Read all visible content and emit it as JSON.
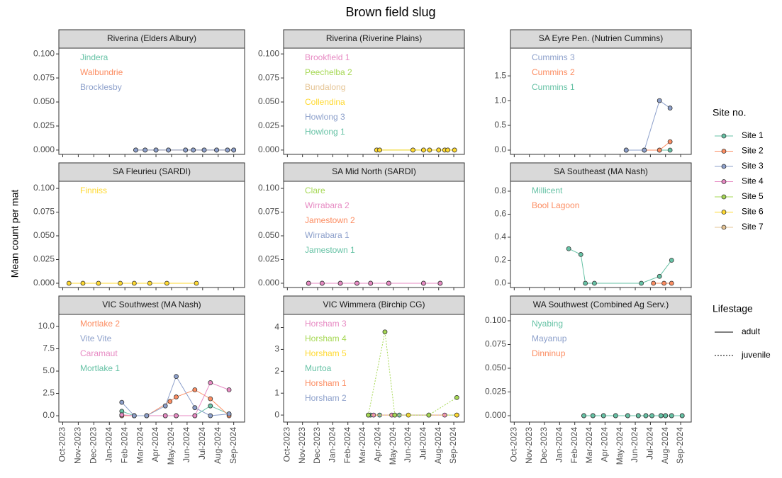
{
  "title": "Brown field slug",
  "y_label": "Mean count per mat",
  "x_axis": {
    "xlim": [
      -0.25,
      11.7
    ],
    "xticks": [
      {
        "value": 0,
        "label": "Oct-2023"
      },
      {
        "value": 1,
        "label": "Nov-2023"
      },
      {
        "value": 2,
        "label": "Dec-2023"
      },
      {
        "value": 3,
        "label": "Jan-2024"
      },
      {
        "value": 4,
        "label": "Feb-2024"
      },
      {
        "value": 5,
        "label": "Mar-2024"
      },
      {
        "value": 6,
        "label": "Apr-2024"
      },
      {
        "value": 7,
        "label": "May-2024"
      },
      {
        "value": 8,
        "label": "Jun-2024"
      },
      {
        "value": 9,
        "label": "Jul-2024"
      },
      {
        "value": 10,
        "label": "Aug-2024"
      },
      {
        "value": 11,
        "label": "Sep-2024"
      }
    ]
  },
  "legend": {
    "title": "Site no.",
    "items": [
      {
        "name": "Site 1",
        "color": "#66c2a5"
      },
      {
        "name": "Site 2",
        "color": "#fc8d62"
      },
      {
        "name": "Site 3",
        "color": "#8da0cb"
      },
      {
        "name": "Site 4",
        "color": "#e78ac3"
      },
      {
        "name": "Site 5",
        "color": "#a6d854"
      },
      {
        "name": "Site 6",
        "color": "#ffd92f"
      },
      {
        "name": "Site 7",
        "color": "#e5c494"
      }
    ],
    "lifestage": {
      "title": "Lifestage",
      "items": [
        {
          "name": "adult",
          "linetype": "solid"
        },
        {
          "name": "juvenile",
          "linetype": "dotted"
        }
      ]
    }
  },
  "chart_data": [
    {
      "type": "line",
      "title": "Riverina (Elders Albury)",
      "ylim": [
        -0.0045,
        0.106
      ],
      "yticks": [
        {
          "value": 0,
          "label": "0.000"
        },
        {
          "value": 0.025,
          "label": "0.025"
        },
        {
          "value": 0.05,
          "label": "0.050"
        },
        {
          "value": 0.075,
          "label": "0.075"
        },
        {
          "value": 0.1,
          "label": "0.100"
        }
      ],
      "annotations": [
        {
          "text": "Jindera",
          "color": "#66c2a5"
        },
        {
          "text": "Walbundrie",
          "color": "#fc8d62"
        },
        {
          "text": "Brocklesby",
          "color": "#8da0cb"
        }
      ],
      "series": [
        {
          "color": "#66c2a5",
          "linetype": "solid",
          "x": [
            4.7,
            5.3,
            6.0,
            6.8,
            7.9,
            8.4,
            9.1,
            9.9,
            10.6,
            11.0
          ],
          "values": [
            0,
            0,
            0,
            0,
            0,
            0,
            0,
            0,
            0,
            0
          ]
        },
        {
          "color": "#fc8d62",
          "linetype": "solid",
          "x": [
            4.7,
            5.3,
            6.0,
            6.8,
            7.9,
            8.4,
            9.1,
            9.9,
            10.6,
            11.0
          ],
          "values": [
            0,
            0,
            0,
            0,
            0,
            0,
            0,
            0,
            0,
            0
          ]
        },
        {
          "color": "#8da0cb",
          "linetype": "solid",
          "x": [
            4.7,
            5.3,
            6.0,
            6.8,
            7.9,
            8.4,
            9.1,
            9.9,
            10.6,
            11.0
          ],
          "values": [
            0,
            0,
            0,
            0,
            0,
            0,
            0,
            0,
            0,
            0
          ]
        }
      ]
    },
    {
      "type": "line",
      "title": "Riverina (Riverine Plains)",
      "ylim": [
        -0.0045,
        0.106
      ],
      "yticks": [
        {
          "value": 0,
          "label": "0.000"
        },
        {
          "value": 0.025,
          "label": "0.025"
        },
        {
          "value": 0.05,
          "label": "0.050"
        },
        {
          "value": 0.075,
          "label": "0.075"
        },
        {
          "value": 0.1,
          "label": "0.100"
        }
      ],
      "annotations": [
        {
          "text": "Brookfield 1",
          "color": "#e78ac3"
        },
        {
          "text": "Peechelba 2",
          "color": "#a6d854"
        },
        {
          "text": "Bundalong",
          "color": "#e5c494"
        },
        {
          "text": "Collendina",
          "color": "#ffd92f"
        },
        {
          "text": "Howlong 3",
          "color": "#8da0cb"
        },
        {
          "text": "Howlong 1",
          "color": "#66c2a5"
        }
      ],
      "series": [
        {
          "color": "#a6d854",
          "linetype": "solid",
          "x": [
            5.9,
            6.1,
            8.3,
            9.0,
            9.4,
            10.0,
            10.4,
            10.6,
            11.05
          ],
          "values": [
            0,
            0,
            0,
            0,
            0,
            0,
            0,
            0,
            0
          ]
        },
        {
          "color": "#ffd92f",
          "linetype": "solid",
          "x": [
            5.9,
            6.1,
            8.3,
            9.0,
            9.4,
            10.0,
            10.4,
            10.6,
            11.05
          ],
          "values": [
            0,
            0,
            0,
            0,
            0,
            0,
            0,
            0,
            0
          ]
        }
      ]
    },
    {
      "type": "line",
      "title": "SA Eyre Pen. (Nutrien Cummins)",
      "ylim": [
        -0.086,
        2.06
      ],
      "yticks": [
        {
          "value": 0,
          "label": "0.0"
        },
        {
          "value": 0.5,
          "label": "0.5"
        },
        {
          "value": 1,
          "label": "1.0"
        },
        {
          "value": 1.5,
          "label": "1.5"
        }
      ],
      "annotations": [
        {
          "text": "Cummins 3",
          "color": "#8da0cb"
        },
        {
          "text": "Cummins 2",
          "color": "#fc8d62"
        },
        {
          "text": "Cummins 1",
          "color": "#66c2a5"
        }
      ],
      "series": [
        {
          "color": "#66c2a5",
          "linetype": "solid",
          "x": [
            7.4,
            8.6,
            9.6,
            10.3
          ],
          "values": [
            0,
            0,
            0,
            0
          ]
        },
        {
          "color": "#fc8d62",
          "linetype": "solid",
          "x": [
            7.4,
            8.6,
            9.6,
            10.3
          ],
          "values": [
            0,
            0,
            0,
            0.17
          ]
        },
        {
          "color": "#8da0cb",
          "linetype": "solid",
          "x": [
            7.4,
            8.6,
            9.6,
            10.3
          ],
          "values": [
            0,
            0,
            1.0,
            0.85
          ]
        }
      ]
    },
    {
      "type": "line",
      "title": "SA Fleurieu (SARDI)",
      "ylim": [
        -0.0045,
        0.1075
      ],
      "yticks": [
        {
          "value": 0,
          "label": "0.000"
        },
        {
          "value": 0.025,
          "label": "0.025"
        },
        {
          "value": 0.05,
          "label": "0.050"
        },
        {
          "value": 0.075,
          "label": "0.075"
        },
        {
          "value": 0.1,
          "label": "0.100"
        }
      ],
      "annotations": [
        {
          "text": "Finniss",
          "color": "#ffd92f"
        }
      ],
      "series": [
        {
          "color": "#ffd92f",
          "linetype": "solid",
          "x": [
            0.4,
            1.3,
            2.3,
            3.7,
            4.6,
            5.6,
            6.7,
            8.6
          ],
          "values": [
            0,
            0,
            0,
            0,
            0,
            0,
            0,
            0
          ]
        }
      ]
    },
    {
      "type": "line",
      "title": "SA Mid North (SARDI)",
      "ylim": [
        -0.0045,
        0.1075
      ],
      "yticks": [
        {
          "value": 0,
          "label": "0.000"
        },
        {
          "value": 0.025,
          "label": "0.025"
        },
        {
          "value": 0.05,
          "label": "0.050"
        },
        {
          "value": 0.075,
          "label": "0.075"
        },
        {
          "value": 0.1,
          "label": "0.100"
        }
      ],
      "annotations": [
        {
          "text": "Clare",
          "color": "#a6d854"
        },
        {
          "text": "Wirrabara 2",
          "color": "#e78ac3"
        },
        {
          "text": "Jamestown 2",
          "color": "#fc8d62"
        },
        {
          "text": "Wirrabara 1",
          "color": "#8da0cb"
        },
        {
          "text": "Jamestown 1",
          "color": "#66c2a5"
        }
      ],
      "series": [
        {
          "color": "#66c2a5",
          "linetype": "solid",
          "x": [
            1.4,
            2.3,
            3.5,
            4.6,
            5.5,
            6.7,
            9.0,
            10.1
          ],
          "values": [
            0,
            0,
            0,
            0,
            0,
            0,
            0,
            0
          ]
        },
        {
          "color": "#e78ac3",
          "linetype": "solid",
          "x": [
            1.4,
            2.3,
            3.5,
            4.6,
            5.5,
            6.7,
            9.0,
            10.1
          ],
          "values": [
            0,
            0,
            0,
            0,
            0,
            0,
            0,
            0
          ]
        }
      ]
    },
    {
      "type": "line",
      "title": "SA Southeast (MA Nash)",
      "ylim": [
        -0.037,
        0.886
      ],
      "yticks": [
        {
          "value": 0,
          "label": "0.0"
        },
        {
          "value": 0.2,
          "label": "0.2"
        },
        {
          "value": 0.4,
          "label": "0.4"
        },
        {
          "value": 0.6,
          "label": "0.6"
        },
        {
          "value": 0.8,
          "label": "0.8"
        }
      ],
      "annotations": [
        {
          "text": "Millicent",
          "color": "#66c2a5"
        },
        {
          "text": "Bool Lagoon",
          "color": "#fc8d62"
        }
      ],
      "series": [
        {
          "color": "#66c2a5",
          "linetype": "solid",
          "x": [
            3.6,
            4.4,
            4.7,
            5.3,
            8.4,
            9.6,
            10.4
          ],
          "values": [
            0.3,
            0.25,
            0,
            0,
            0,
            0.06,
            0.2
          ]
        },
        {
          "color": "#fc8d62",
          "linetype": "solid",
          "x": [
            9.2,
            9.9,
            10.4
          ],
          "values": [
            0,
            0,
            0
          ]
        }
      ]
    },
    {
      "type": "line",
      "title": "VIC Southwest (MA Nash)",
      "ylim": [
        -0.71,
        11.35
      ],
      "yticks": [
        {
          "value": 0,
          "label": "0.0"
        },
        {
          "value": 2.5,
          "label": "2.5"
        },
        {
          "value": 5,
          "label": "5.0"
        },
        {
          "value": 7.5,
          "label": "7.5"
        },
        {
          "value": 10,
          "label": "10.0"
        }
      ],
      "annotations": [
        {
          "text": "Mortlake 2",
          "color": "#fc8d62"
        },
        {
          "text": "Vite Vite",
          "color": "#8da0cb"
        },
        {
          "text": "Caramaut",
          "color": "#e78ac3"
        },
        {
          "text": "Mortlake 1",
          "color": "#66c2a5"
        }
      ],
      "series": [
        {
          "color": "#66c2a5",
          "linetype": "solid",
          "x": [
            3.8,
            4.6,
            5.4,
            6.6,
            7.3,
            8.5,
            9.5,
            10.7
          ],
          "values": [
            0.5,
            0,
            0,
            0,
            0,
            0,
            1.1,
            0.2
          ]
        },
        {
          "color": "#fc8d62",
          "linetype": "solid",
          "x": [
            3.8,
            4.6,
            5.4,
            6.9,
            7.3,
            8.5,
            9.5,
            10.7
          ],
          "values": [
            0,
            0,
            0,
            1.6,
            2.1,
            2.9,
            1.9,
            0
          ]
        },
        {
          "color": "#e78ac3",
          "linetype": "solid",
          "x": [
            3.8,
            4.6,
            6.6,
            7.3,
            8.5,
            9.5,
            10.7
          ],
          "values": [
            0.1,
            0,
            0,
            0,
            0,
            3.7,
            2.9
          ]
        },
        {
          "color": "#8da0cb",
          "linetype": "solid",
          "x": [
            3.8,
            4.6,
            5.4,
            6.6,
            7.3,
            8.5,
            9.5,
            10.7
          ],
          "values": [
            1.5,
            0,
            0,
            1.1,
            4.4,
            0.9,
            0,
            0.2
          ]
        }
      ]
    },
    {
      "type": "line",
      "title": "VIC Wimmera (Birchip CG)",
      "ylim": [
        -0.32,
        4.6
      ],
      "yticks": [
        0,
        1,
        2,
        3,
        4
      ],
      "annotations": [
        {
          "text": "Horsham 3",
          "color": "#e78ac3"
        },
        {
          "text": "Horsham 4",
          "color": "#a6d854"
        },
        {
          "text": "Horsham 5",
          "color": "#ffd92f"
        },
        {
          "text": "Murtoa",
          "color": "#66c2a5"
        },
        {
          "text": "Horsham 1",
          "color": "#fc8d62"
        },
        {
          "text": "Horsham 2",
          "color": "#8da0cb"
        }
      ],
      "series": [
        {
          "color": "#66c2a5",
          "linetype": "solid",
          "x": [
            5.5,
            6.1,
            7.4,
            11.2
          ],
          "values": [
            0,
            0,
            0,
            0
          ]
        },
        {
          "color": "#e78ac3",
          "linetype": "solid",
          "x": [
            5.7,
            6.9,
            10.4
          ],
          "values": [
            0,
            0,
            0
          ]
        },
        {
          "color": "#ffd92f",
          "linetype": "dotted",
          "x": [
            5.35,
            7.1,
            8.0,
            9.35,
            11.2
          ],
          "values": [
            0,
            0,
            0,
            0,
            0
          ]
        },
        {
          "color": "#a6d854",
          "linetype": "dotted",
          "x": [
            5.35,
            6.45,
            7.1,
            9.35,
            11.2
          ],
          "values": [
            0,
            3.8,
            0,
            0,
            0.8
          ]
        }
      ]
    },
    {
      "type": "line",
      "title": "WA Southwest (Combined Ag Serv.)",
      "ylim": [
        -0.0067,
        0.1067
      ],
      "yticks": [
        {
          "value": 0,
          "label": "0.000"
        },
        {
          "value": 0.025,
          "label": "0.025"
        },
        {
          "value": 0.05,
          "label": "0.050"
        },
        {
          "value": 0.075,
          "label": "0.075"
        },
        {
          "value": 0.1,
          "label": "0.100"
        }
      ],
      "annotations": [
        {
          "text": "Nyabing",
          "color": "#66c2a5"
        },
        {
          "text": "Mayanup",
          "color": "#8da0cb"
        },
        {
          "text": "Dinninup",
          "color": "#fc8d62"
        }
      ],
      "series": [
        {
          "color": "#fc8d62",
          "linetype": "solid",
          "x": [
            4.6,
            5.2,
            5.9,
            6.7,
            7.5,
            8.2,
            8.7,
            9.1,
            9.7,
            10.0,
            10.4,
            11.1
          ],
          "values": [
            0,
            0,
            0,
            0,
            0,
            0,
            0,
            0,
            0,
            0,
            0,
            0
          ]
        },
        {
          "color": "#8da0cb",
          "linetype": "solid",
          "x": [
            4.6,
            5.2,
            5.9,
            6.7,
            7.5,
            8.2,
            8.7,
            9.1,
            9.7,
            10.0,
            10.4,
            11.1
          ],
          "values": [
            0,
            0,
            0,
            0,
            0,
            0,
            0,
            0,
            0,
            0,
            0,
            0
          ]
        },
        {
          "color": "#66c2a5",
          "linetype": "solid",
          "x": [
            4.6,
            5.2,
            5.9,
            6.7,
            7.5,
            8.2,
            8.7,
            9.1,
            9.7,
            10.0,
            10.4,
            11.1
          ],
          "values": [
            0,
            0,
            0,
            0,
            0,
            0,
            0,
            0,
            0,
            0,
            0,
            0
          ]
        }
      ]
    }
  ]
}
